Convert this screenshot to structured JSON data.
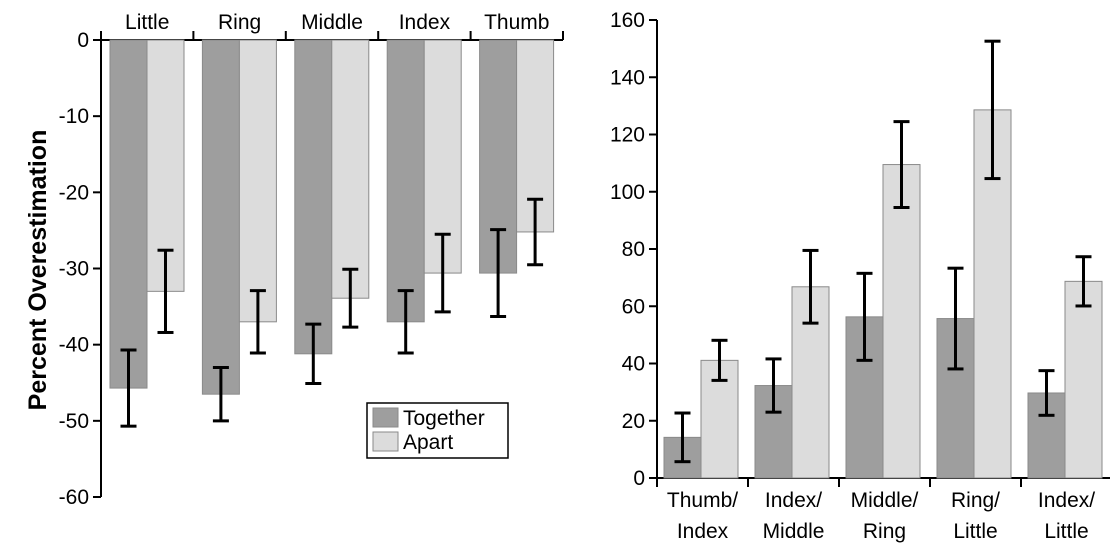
{
  "chart_data": [
    {
      "type": "bar",
      "title": "",
      "ylabel": "Percent Overestimation",
      "xlabel": "",
      "x_axis_position": "top",
      "categories": [
        "Little",
        "Ring",
        "Middle",
        "Index",
        "Thumb"
      ],
      "ylim": [
        -60,
        0
      ],
      "yticks": [
        0,
        -10,
        -20,
        -30,
        -40,
        -50,
        -60
      ],
      "ytick_labels": [
        "0",
        "-10",
        "-20",
        "-30",
        "-40",
        "-50",
        "-60"
      ],
      "series": [
        {
          "name": "Together",
          "color": "#9e9e9e",
          "values": [
            -45.7,
            -46.5,
            -41.2,
            -37.0,
            -30.6
          ],
          "errors": [
            5.0,
            3.5,
            3.9,
            4.1,
            5.7
          ]
        },
        {
          "name": "Apart",
          "color": "#dcdcdc",
          "values": [
            -33.0,
            -37.0,
            -33.9,
            -30.6,
            -25.2
          ],
          "errors": [
            5.4,
            4.1,
            3.8,
            5.1,
            4.3
          ]
        }
      ],
      "legend": {
        "position": "bottom-right",
        "entries": [
          "Together",
          "Apart"
        ]
      },
      "grid": false
    },
    {
      "type": "bar",
      "title": "",
      "ylabel": "",
      "xlabel": "",
      "categories": [
        [
          "Thumb/",
          "Index"
        ],
        [
          "Index/",
          "Middle"
        ],
        [
          "Middle/",
          "Ring"
        ],
        [
          "Ring/",
          "Little"
        ],
        [
          "Index/",
          "Little"
        ]
      ],
      "ylim": [
        0,
        160
      ],
      "yticks": [
        0,
        20,
        40,
        60,
        80,
        100,
        120,
        140,
        160
      ],
      "ytick_labels": [
        "0",
        "20",
        "40",
        "60",
        "80",
        "100",
        "120",
        "140",
        "160"
      ],
      "series": [
        {
          "name": "Together",
          "color": "#9e9e9e",
          "values": [
            14.2,
            32.3,
            56.3,
            55.7,
            29.7
          ],
          "errors": [
            8.5,
            9.3,
            15.2,
            17.6,
            7.8
          ]
        },
        {
          "name": "Apart",
          "color": "#dcdcdc",
          "values": [
            41.1,
            66.8,
            109.5,
            128.6,
            68.7
          ],
          "errors": [
            7.0,
            12.7,
            15.0,
            24.0,
            8.6
          ]
        }
      ],
      "grid": false
    }
  ]
}
